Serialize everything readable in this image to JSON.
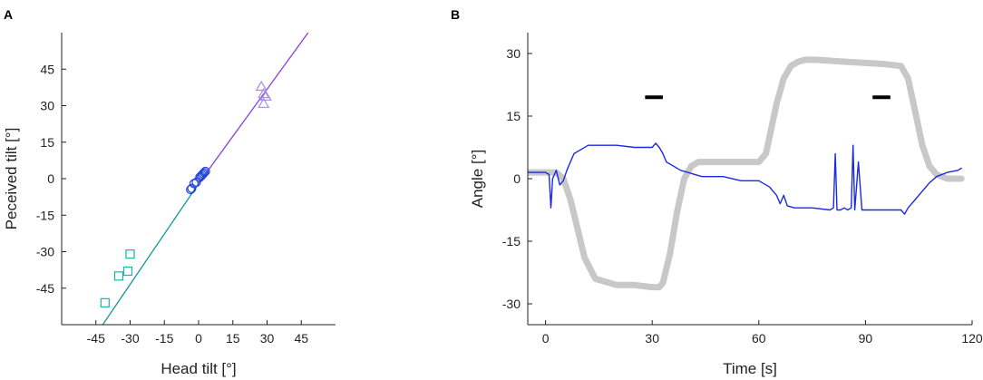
{
  "chart_data": [
    {
      "panel_label": "A",
      "type": "scatter",
      "xlabel": "Head tilt [°]",
      "ylabel": "Peceived tilt [°]",
      "xlim": [
        -60,
        60
      ],
      "ylim": [
        -60,
        60
      ],
      "xticks": [
        -45,
        -30,
        -15,
        0,
        15,
        30,
        45
      ],
      "yticks": [
        -45,
        -30,
        -15,
        0,
        15,
        30,
        45
      ],
      "grid": false,
      "lines": [
        {
          "color": "#0d9a9a",
          "x": [
            -42,
            0
          ],
          "y": [
            -60,
            -2
          ]
        },
        {
          "color": "#8a3fe0",
          "x": [
            0,
            48
          ],
          "y": [
            -2,
            60
          ]
        }
      ],
      "series": [
        {
          "marker": "square",
          "color": "#13b5b2",
          "x": [
            -41,
            -35,
            -31,
            -30
          ],
          "y": [
            -51,
            -40,
            -38,
            -31
          ]
        },
        {
          "marker": "circle",
          "color": "#2040e0",
          "x": [
            -3.5,
            -3,
            -2,
            -1,
            0.5,
            1,
            1.5,
            2,
            2.5,
            3
          ],
          "y": [
            -4.5,
            -4,
            -2,
            -1.5,
            0.5,
            1,
            1.5,
            2,
            2.5,
            3
          ]
        },
        {
          "marker": "triangle",
          "color": "#a98ce8",
          "x": [
            27.5,
            28.5,
            29.5,
            28.5
          ],
          "y": [
            38,
            35,
            34,
            31
          ]
        }
      ]
    },
    {
      "panel_label": "B",
      "type": "line",
      "xlabel": "Time [s]",
      "ylabel": "Angle [°]",
      "xlim": [
        -5,
        120
      ],
      "ylim": [
        -35,
        35
      ],
      "xticks": [
        0,
        30,
        60,
        90,
        120
      ],
      "yticks": [
        -30,
        -15,
        0,
        15,
        30
      ],
      "grid": false,
      "series": [
        {
          "color": "#c8c8c8",
          "x": [
            -5,
            3,
            5,
            7,
            9,
            11,
            14,
            20,
            25,
            30,
            32,
            33,
            35,
            37,
            39,
            41,
            43,
            45,
            50,
            55,
            60,
            62,
            63,
            65,
            67,
            69,
            71,
            73,
            76,
            85,
            95,
            100,
            102,
            104,
            106,
            108,
            110,
            113,
            117
          ],
          "y": [
            1.5,
            1.5,
            0,
            -5,
            -12,
            -19,
            -24,
            -25.5,
            -25.5,
            -26,
            -26,
            -25,
            -18,
            -8,
            0,
            3,
            4,
            4,
            4,
            4,
            4,
            6,
            10,
            18,
            24,
            27,
            28,
            28.5,
            28.5,
            28,
            27.5,
            27,
            24,
            16,
            8,
            3,
            1,
            0,
            0
          ]
        },
        {
          "color": "#1a2ae0",
          "x": [
            -5,
            0,
            1,
            1.5,
            2,
            3,
            4,
            5,
            6,
            7,
            8,
            10,
            12,
            15,
            20,
            25,
            30,
            31,
            32,
            33,
            34,
            36,
            38,
            40,
            42,
            44,
            46,
            50,
            55,
            60,
            63,
            65,
            66,
            67,
            68,
            70,
            75,
            80,
            81,
            81.5,
            82,
            83,
            84,
            85,
            86,
            86.5,
            87,
            88,
            89,
            90,
            95,
            100,
            101,
            102,
            103,
            104,
            106,
            108,
            110,
            113,
            116,
            117
          ],
          "y": [
            1.5,
            1.5,
            1,
            -7,
            0,
            2,
            -1.5,
            -0.5,
            2,
            4,
            6,
            7,
            8,
            8,
            8,
            7.5,
            7.5,
            8.5,
            7.5,
            6,
            4,
            3,
            2,
            1.5,
            1,
            0.5,
            0.5,
            0.5,
            -0.5,
            -0.5,
            -2,
            -4,
            -6,
            -4,
            -6.5,
            -7,
            -7,
            -7.5,
            -7,
            6,
            -7.5,
            -7.5,
            -7,
            -7.5,
            -7,
            8,
            -7.5,
            4,
            -7.5,
            -7.5,
            -7.5,
            -7.5,
            -8.5,
            -7,
            -6,
            -5,
            -3,
            -1,
            0.5,
            1.5,
            2,
            2.5
          ]
        }
      ],
      "annotations": [
        {
          "type": "bar",
          "x": [
            28,
            33
          ],
          "y": 19.5
        },
        {
          "type": "bar",
          "x": [
            92,
            97
          ],
          "y": 19.5
        }
      ]
    }
  ]
}
